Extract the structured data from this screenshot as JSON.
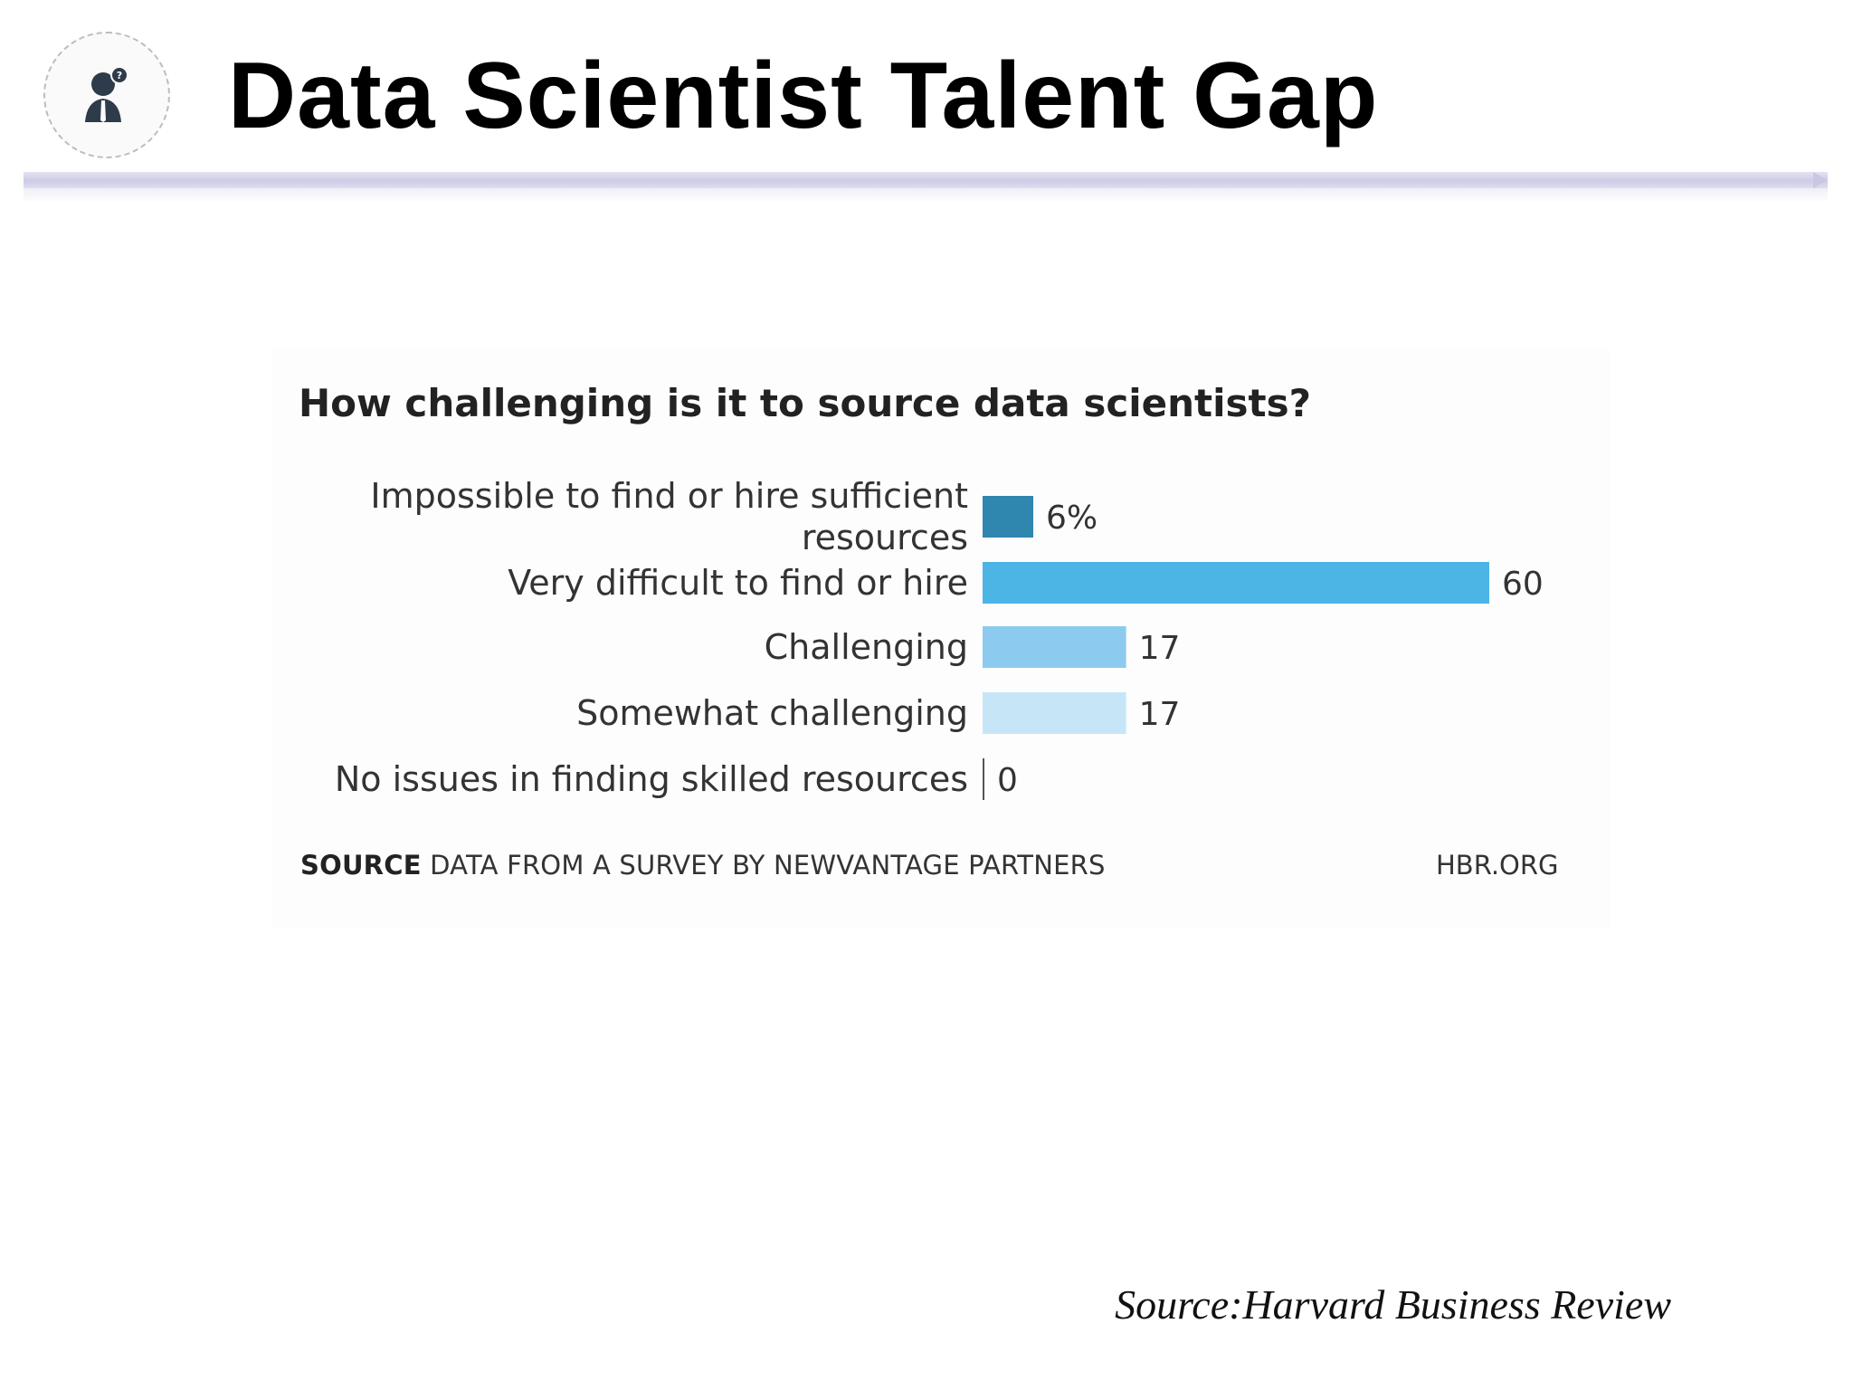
{
  "slide": {
    "title": "Data Scientist Talent Gap",
    "logo_icon": "person-question-icon",
    "footer_source": "Source:Harvard Business Review"
  },
  "chart_data": {
    "type": "bar",
    "orientation": "horizontal",
    "title": "How challenging is it to source data scientists?",
    "categories": [
      [
        "Impossible to find or hire sufficient",
        "resources"
      ],
      [
        "Very difficult to find or hire"
      ],
      [
        "Challenging"
      ],
      [
        "Somewhat challenging"
      ],
      [
        "No issues in finding skilled resources"
      ]
    ],
    "values": [
      6,
      60,
      17,
      17,
      0
    ],
    "value_labels": [
      "6%",
      "60",
      "17",
      "17",
      "0"
    ],
    "colors": [
      "#2f86ae",
      "#4cb5e6",
      "#8ccbef",
      "#c6e6f8",
      "#555555"
    ],
    "xlim": [
      0,
      60
    ],
    "grid": false,
    "legend": "none",
    "source_label": "SOURCE",
    "source_text": "DATA FROM A SURVEY BY NEWVANTAGE PARTNERS",
    "credit": "HBR.ORG"
  }
}
